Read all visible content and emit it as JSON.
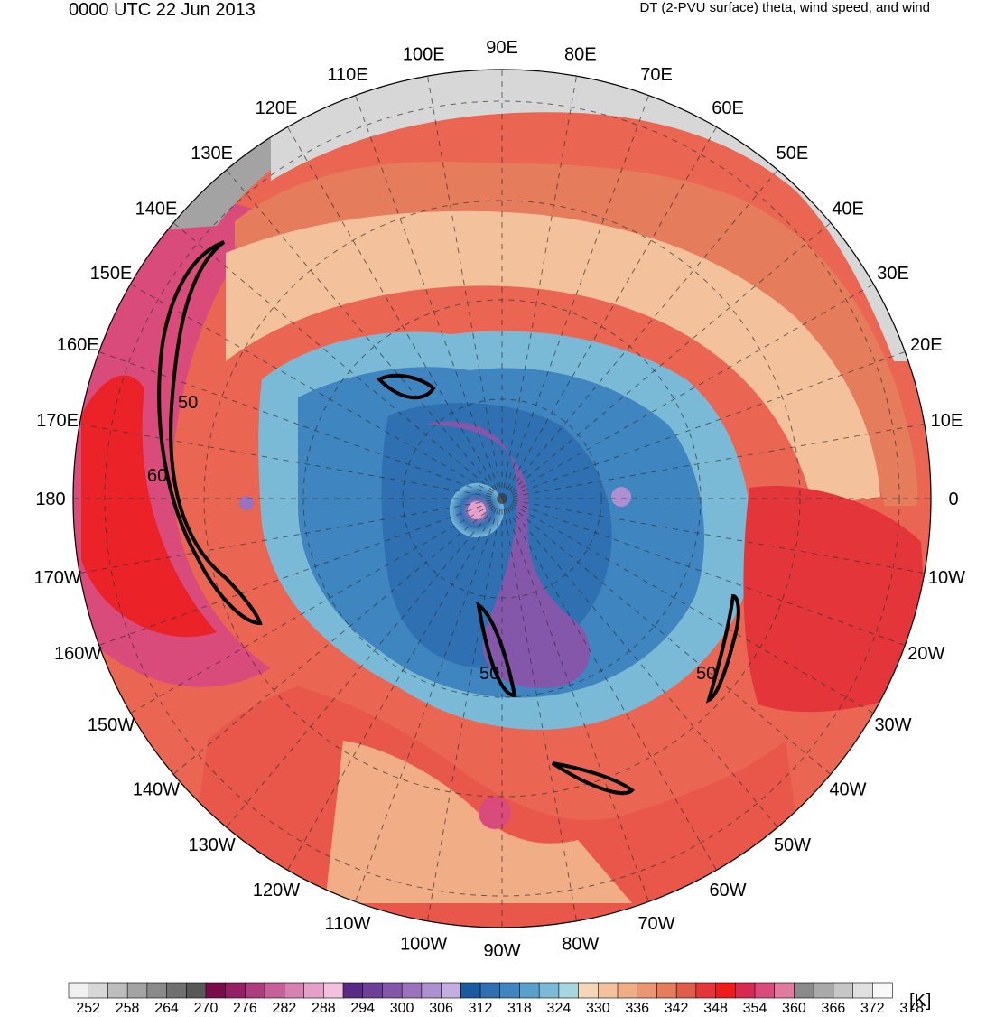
{
  "header": {
    "valid_time": "0000 UTC 22 Jun 2013",
    "description": "DT (2-PVU surface) theta, wind speed, and wind"
  },
  "map": {
    "projection": "north-polar-stereographic",
    "longitude_labels": [
      "0",
      "10E",
      "20E",
      "30E",
      "40E",
      "50E",
      "60E",
      "70E",
      "80E",
      "90E",
      "100E",
      "110E",
      "120E",
      "130E",
      "140E",
      "150E",
      "160E",
      "170E",
      "180",
      "170W",
      "160W",
      "150W",
      "140W",
      "130W",
      "120W",
      "110W",
      "100W",
      "90W",
      "80W",
      "70W",
      "60W",
      "50W",
      "40W",
      "30W",
      "20W",
      "10W"
    ],
    "wind_speed_contour_labels": [
      "50",
      "60",
      "50",
      "50"
    ]
  },
  "colorbar": {
    "unit_label": "[K]",
    "tick_labels": [
      "252",
      "258",
      "264",
      "270",
      "276",
      "282",
      "288",
      "294",
      "300",
      "306",
      "312",
      "318",
      "324",
      "330",
      "336",
      "342",
      "348",
      "354",
      "360",
      "366",
      "372",
      "378"
    ],
    "colors": [
      "#f0f0f0",
      "#d7d7d7",
      "#bdbdbd",
      "#a3a3a3",
      "#8a8a8a",
      "#6f6f6f",
      "#585858",
      "#7a0b4d",
      "#951f66",
      "#ae3d80",
      "#c5609b",
      "#d781b3",
      "#e4a0c8",
      "#f1c1de",
      "#5b2a86",
      "#6f3f98",
      "#8457aa",
      "#9a72bd",
      "#ae8fcf",
      "#c4addf",
      "#1b5aa0",
      "#2f70b2",
      "#3f86c0",
      "#5aa0cc",
      "#7bbad7",
      "#a7d5e0",
      "#f5d6b6",
      "#f3c29c",
      "#f0ad86",
      "#eb9670",
      "#e57c5c",
      "#df5d4a",
      "#e4363a",
      "#ee1b1b",
      "#d72a52",
      "#d94b7a",
      "#e07a9e",
      "#8a8a8a",
      "#a9a9a9",
      "#c6c6c6",
      "#e0e0e0",
      "#f8f8f8"
    ]
  }
}
